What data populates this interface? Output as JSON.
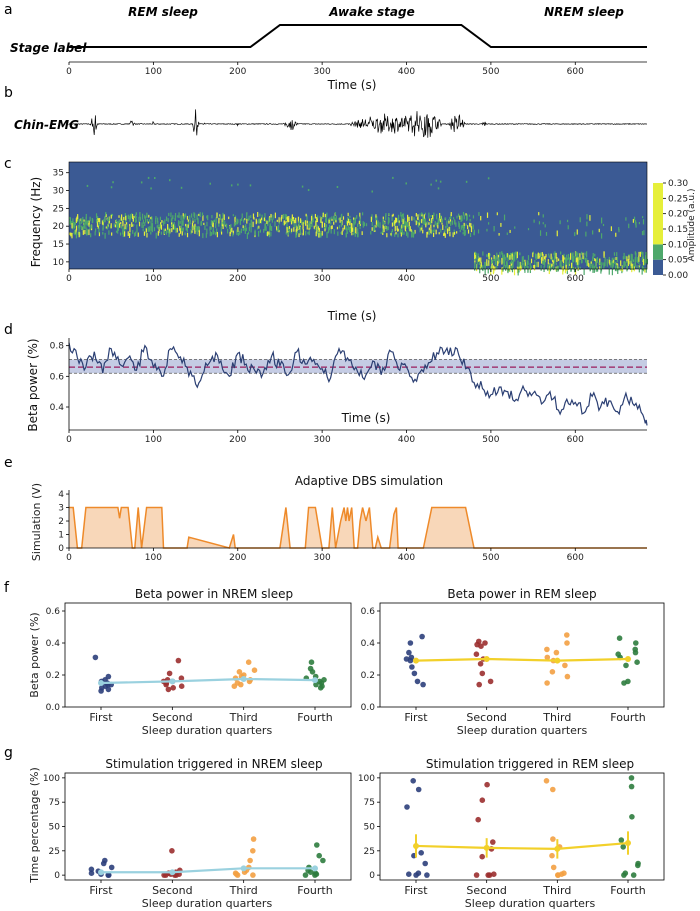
{
  "panel_letters": [
    "a",
    "b",
    "c",
    "d",
    "e",
    "f",
    "g"
  ],
  "colors": {
    "awake_line": "#000000",
    "emg": "#000000",
    "spec_bg": "#3b5a94",
    "spec_hot": "#e6ef3a",
    "spec_mid": "#4ea86b",
    "beta_line": "#2b3f73",
    "beta_band": "#b7bfdd",
    "beta_mean": "#9a1b5c",
    "stim_line": "#ee8a2a",
    "stim_fill": "#f7d3b1",
    "nrem_line": "#9ad1df",
    "rem_line": "#f2d02a",
    "q_first": "#2c3f7b",
    "q_second": "#9b2f2f",
    "q_third": "#f3a043",
    "q_fourth": "#2e7c3e"
  },
  "chart_data": [
    {
      "id": "a",
      "type": "line",
      "ylabel": "Stage label",
      "xlabel": "Time (s)",
      "xlim": [
        0,
        685
      ],
      "xticks": [
        0,
        100,
        200,
        300,
        400,
        500,
        600
      ],
      "stage_names": [
        "REM sleep",
        "Awake stage",
        "NREM sleep"
      ],
      "x": [
        0,
        215,
        250,
        465,
        500,
        685
      ],
      "y": [
        0,
        0,
        1,
        1,
        0,
        0
      ]
    },
    {
      "id": "b",
      "type": "line",
      "ylabel": "Chin-EMG",
      "xlim": [
        0,
        685
      ],
      "bursts": [
        {
          "center": 30,
          "width": 10,
          "amp": 0.65
        },
        {
          "center": 75,
          "width": 8,
          "amp": 0.25
        },
        {
          "center": 100,
          "width": 2,
          "amp": 0.15
        },
        {
          "center": 150,
          "width": 8,
          "amp": 1.0
        },
        {
          "center": 160,
          "width": 2,
          "amp": 0.25
        },
        {
          "center": 200,
          "width": 2,
          "amp": 0.15
        },
        {
          "center": 263,
          "width": 18,
          "amp": 0.35
        },
        {
          "center": 380,
          "width": 100,
          "amp": 0.55
        },
        {
          "center": 420,
          "width": 45,
          "amp": 0.95
        },
        {
          "center": 460,
          "width": 20,
          "amp": 0.65
        },
        {
          "center": 492,
          "width": 6,
          "amp": 0.2
        }
      ]
    },
    {
      "id": "c",
      "type": "heatmap",
      "ylabel": "Frequency (Hz)",
      "xlabel": "Time (s)",
      "xlim": [
        0,
        685
      ],
      "ylim": [
        8,
        38
      ],
      "yticks": [
        10,
        15,
        20,
        25,
        30,
        35
      ],
      "xticks": [
        0,
        100,
        200,
        300,
        400,
        500,
        600
      ],
      "colorbar_label": "Amplitude (a.u.)",
      "colorbar_ticks": [
        "0.00",
        "0.05",
        "0.10",
        "0.15",
        "0.20",
        "0.25",
        "0.30"
      ],
      "colorbar_range": [
        0,
        0.3
      ],
      "beta_band_hz": [
        18,
        24
      ],
      "low_band_hz": [
        8,
        13
      ],
      "low_band_start_s": 480
    },
    {
      "id": "d",
      "type": "line",
      "ylabel": "Beta power (%)",
      "xlabel": "Time (s)",
      "xlim": [
        0,
        685
      ],
      "ylim": [
        0.25,
        0.85
      ],
      "yticks": [
        0.4,
        0.6,
        0.8
      ],
      "xticks": [
        0,
        100,
        200,
        300,
        400,
        500,
        600
      ],
      "mean": 0.66,
      "band": [
        0.62,
        0.71
      ],
      "x": [
        0,
        10,
        20,
        30,
        40,
        50,
        60,
        70,
        80,
        90,
        100,
        110,
        120,
        130,
        140,
        150,
        160,
        170,
        180,
        190,
        200,
        210,
        220,
        230,
        240,
        250,
        260,
        270,
        280,
        290,
        300,
        310,
        320,
        330,
        340,
        350,
        360,
        370,
        380,
        390,
        400,
        410,
        420,
        430,
        440,
        450,
        460,
        470,
        480,
        490,
        500,
        510,
        520,
        530,
        540,
        550,
        560,
        570,
        580,
        590,
        600,
        610,
        620,
        630,
        640,
        650,
        660,
        670,
        680,
        685
      ],
      "y": [
        0.82,
        0.72,
        0.66,
        0.76,
        0.62,
        0.78,
        0.68,
        0.72,
        0.64,
        0.8,
        0.66,
        0.6,
        0.78,
        0.72,
        0.66,
        0.55,
        0.63,
        0.73,
        0.7,
        0.6,
        0.75,
        0.68,
        0.64,
        0.62,
        0.73,
        0.67,
        0.61,
        0.76,
        0.68,
        0.71,
        0.65,
        0.59,
        0.78,
        0.72,
        0.66,
        0.58,
        0.7,
        0.61,
        0.77,
        0.65,
        0.66,
        0.58,
        0.63,
        0.7,
        0.79,
        0.74,
        0.78,
        0.65,
        0.56,
        0.52,
        0.48,
        0.53,
        0.5,
        0.45,
        0.51,
        0.49,
        0.42,
        0.5,
        0.38,
        0.45,
        0.43,
        0.36,
        0.47,
        0.4,
        0.44,
        0.37,
        0.49,
        0.41,
        0.35,
        0.28
      ]
    },
    {
      "id": "e",
      "type": "area",
      "title": "Adaptive DBS simulation",
      "ylabel": "Simulation (V)",
      "xlim": [
        0,
        685
      ],
      "ylim": [
        0,
        4.3
      ],
      "yticks": [
        0,
        1,
        2,
        3,
        4
      ],
      "xticks": [
        0,
        100,
        200,
        300,
        400,
        500,
        600
      ],
      "x": [
        0,
        5,
        10,
        15,
        20,
        58,
        60,
        62,
        70,
        75,
        78,
        82,
        86,
        92,
        100,
        110,
        112,
        115,
        120,
        140,
        142,
        190,
        195,
        197,
        240,
        250,
        257,
        262,
        270,
        280,
        284,
        292,
        300,
        303,
        308,
        312,
        316,
        322,
        326,
        328,
        330,
        332,
        335,
        338,
        342,
        345,
        348,
        352,
        356,
        360,
        363,
        366,
        370,
        380,
        385,
        388,
        390,
        400,
        410,
        420,
        430,
        465,
        470,
        480,
        685
      ],
      "y": [
        3,
        3,
        0,
        0,
        3,
        3,
        2.2,
        3,
        3,
        0,
        0,
        3,
        0,
        3,
        3,
        3,
        0,
        0,
        0,
        0,
        0.8,
        0,
        1,
        0,
        0,
        0,
        3,
        0,
        0,
        0,
        3,
        3,
        0,
        0,
        0,
        3,
        0,
        2,
        3,
        2,
        3,
        2,
        3,
        0,
        0,
        2,
        3,
        2,
        3,
        0,
        0,
        0.8,
        0,
        0,
        2.5,
        3,
        0,
        0,
        0,
        0,
        3,
        3,
        3,
        0,
        0
      ]
    },
    {
      "id": "f1",
      "type": "scatter",
      "title": "Beta power in NREM sleep",
      "ylabel": "Beta power (%)",
      "xlabel": "Sleep duration quarters",
      "categories": [
        "First",
        "Second",
        "Third",
        "Fourth"
      ],
      "ylim": [
        0,
        0.65
      ],
      "yticks": [
        "0.0",
        "0.2",
        "0.4",
        "0.6"
      ],
      "mean_line": [
        0.15,
        0.16,
        0.175,
        0.168
      ],
      "series": [
        {
          "name": "First",
          "values": [
            0.31,
            0.19,
            0.17,
            0.16,
            0.15,
            0.14,
            0.13,
            0.12,
            0.11,
            0.1,
            0.14
          ]
        },
        {
          "name": "Second",
          "values": [
            0.29,
            0.21,
            0.18,
            0.17,
            0.16,
            0.15,
            0.14,
            0.13,
            0.12,
            0.11,
            0.16
          ]
        },
        {
          "name": "Third",
          "values": [
            0.28,
            0.23,
            0.22,
            0.19,
            0.18,
            0.17,
            0.16,
            0.15,
            0.14,
            0.13,
            0.2
          ]
        },
        {
          "name": "Fourth",
          "values": [
            0.28,
            0.24,
            0.22,
            0.19,
            0.18,
            0.17,
            0.15,
            0.14,
            0.13,
            0.12,
            0.16
          ]
        }
      ]
    },
    {
      "id": "f2",
      "type": "scatter",
      "title": "Beta power in REM sleep",
      "xlabel": "Sleep duration quarters",
      "categories": [
        "First",
        "Second",
        "Third",
        "Fourth"
      ],
      "ylim": [
        0,
        0.65
      ],
      "yticks": [
        "0.0",
        "0.2",
        "0.4",
        "0.6"
      ],
      "mean_line": [
        0.29,
        0.3,
        0.29,
        0.3
      ],
      "series": [
        {
          "name": "First",
          "values": [
            0.44,
            0.4,
            0.34,
            0.31,
            0.3,
            0.29,
            0.25,
            0.21,
            0.16,
            0.14
          ]
        },
        {
          "name": "Second",
          "values": [
            0.41,
            0.4,
            0.39,
            0.38,
            0.33,
            0.3,
            0.27,
            0.21,
            0.16,
            0.14
          ]
        },
        {
          "name": "Third",
          "values": [
            0.45,
            0.4,
            0.36,
            0.34,
            0.31,
            0.29,
            0.26,
            0.22,
            0.19,
            0.15
          ]
        },
        {
          "name": "Fourth",
          "values": [
            0.43,
            0.4,
            0.36,
            0.34,
            0.33,
            0.31,
            0.28,
            0.26,
            0.16,
            0.15
          ]
        }
      ]
    },
    {
      "id": "g1",
      "type": "scatter",
      "title": "Stimulation triggered in NREM sleep",
      "ylabel": "Time percentage (%)",
      "xlabel": "Sleep duration quarters",
      "categories": [
        "First",
        "Second",
        "Third",
        "Fourth"
      ],
      "ylim": [
        -5,
        105
      ],
      "yticks": [
        0,
        25,
        50,
        75,
        100
      ],
      "mean_line": [
        3,
        3,
        7,
        7
      ],
      "series": [
        {
          "name": "First",
          "values": [
            15,
            12,
            8,
            6,
            4,
            3,
            2,
            1,
            0,
            0
          ]
        },
        {
          "name": "Second",
          "values": [
            25,
            5,
            3,
            2,
            1,
            1,
            0,
            0,
            0,
            0
          ]
        },
        {
          "name": "Third",
          "values": [
            37,
            25,
            15,
            8,
            5,
            3,
            2,
            1,
            0,
            0
          ]
        },
        {
          "name": "Fourth",
          "values": [
            31,
            20,
            15,
            8,
            5,
            3,
            2,
            1,
            0,
            0
          ]
        }
      ]
    },
    {
      "id": "g2",
      "type": "scatter",
      "title": "Stimulation triggered in REM sleep",
      "xlabel": "Sleep duration quarters",
      "categories": [
        "First",
        "Second",
        "Third",
        "Fourth"
      ],
      "ylim": [
        -5,
        105
      ],
      "yticks": [
        0,
        25,
        50,
        75,
        100
      ],
      "mean_line": [
        30,
        28,
        27,
        33
      ],
      "error": [
        12,
        10,
        10,
        12
      ],
      "series": [
        {
          "name": "First",
          "values": [
            97,
            88,
            70,
            23,
            20,
            12,
            2,
            1,
            0,
            0
          ]
        },
        {
          "name": "Second",
          "values": [
            93,
            77,
            57,
            34,
            27,
            19,
            1,
            0,
            0,
            0
          ]
        },
        {
          "name": "Third",
          "values": [
            97,
            88,
            37,
            29,
            20,
            8,
            2,
            1,
            0,
            0
          ]
        },
        {
          "name": "Fourth",
          "values": [
            100,
            91,
            60,
            36,
            29,
            12,
            10,
            2,
            0,
            0
          ]
        }
      ]
    }
  ]
}
